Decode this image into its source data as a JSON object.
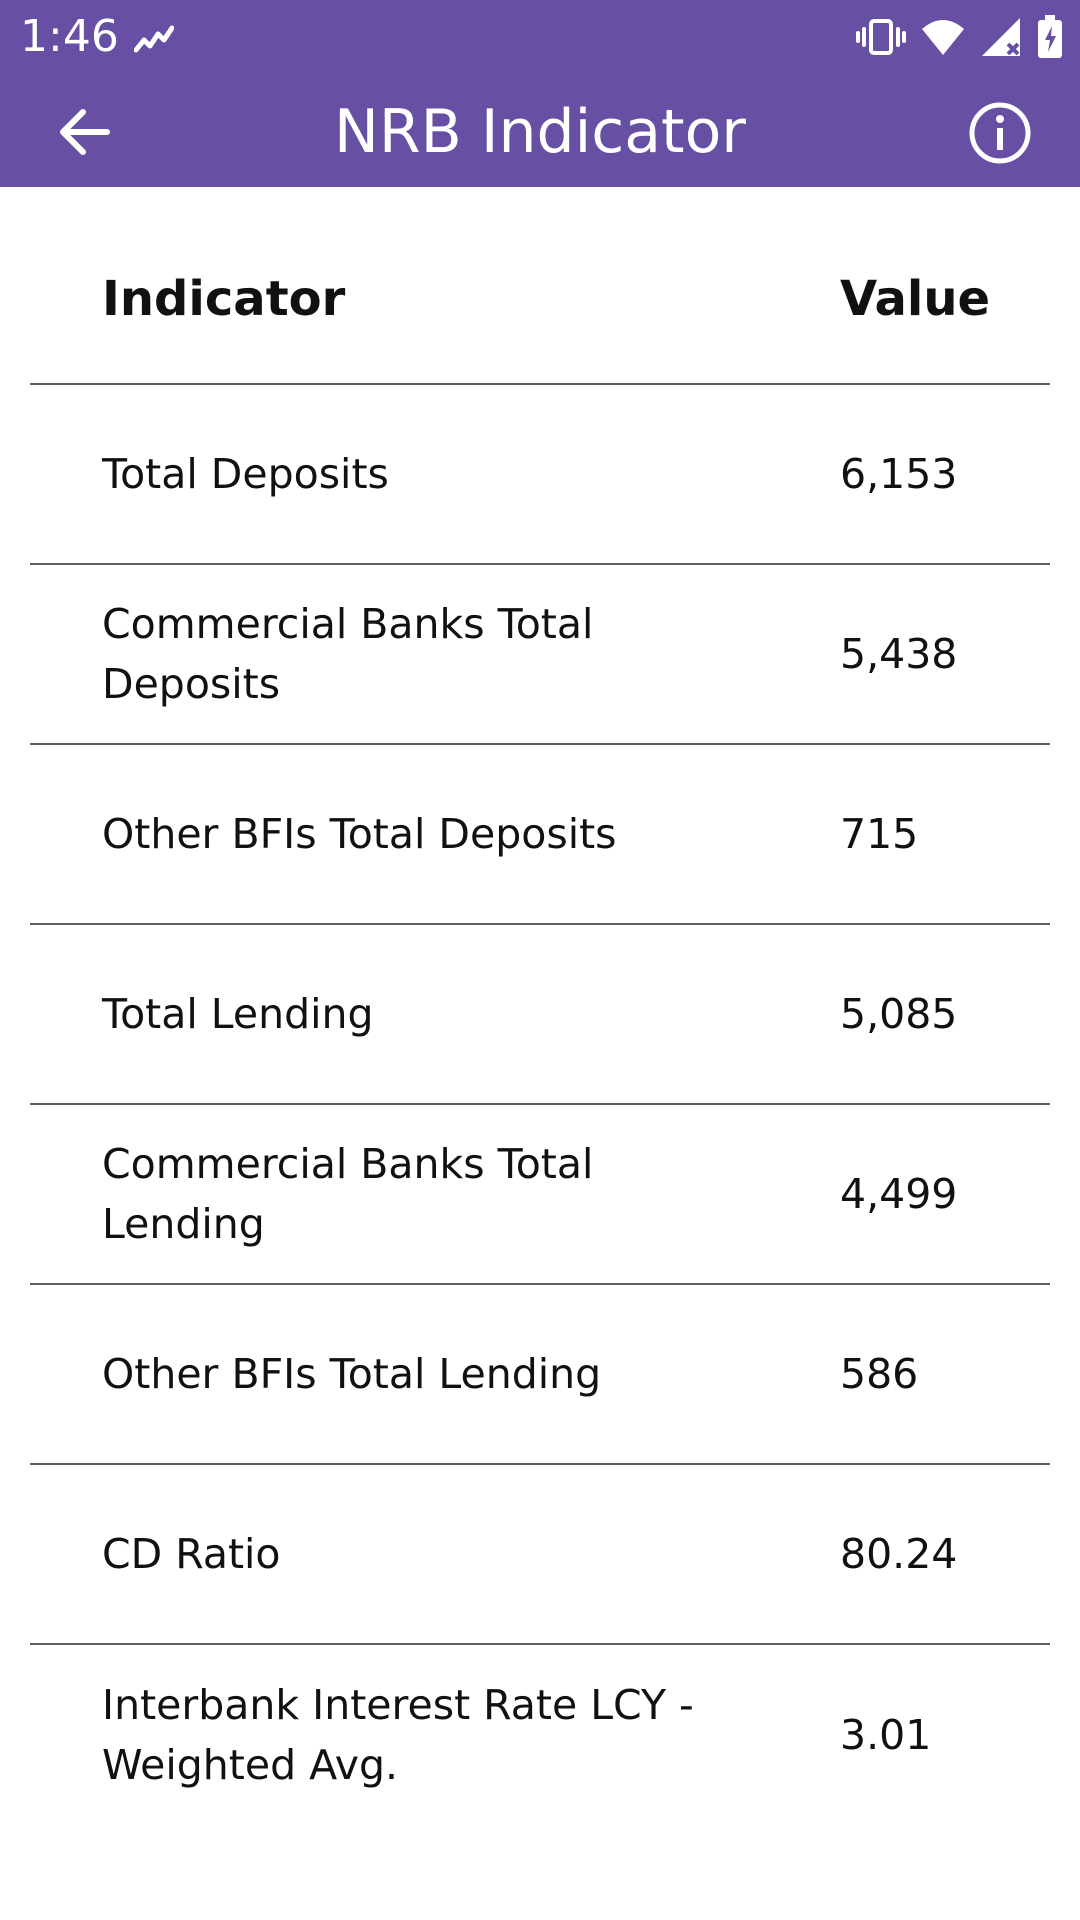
{
  "status_bar": {
    "time": "1:46"
  },
  "app_bar": {
    "title": "NRB Indicator",
    "color": "#6750A4"
  },
  "table": {
    "headers": [
      "Indicator",
      "Value"
    ],
    "rows": [
      {
        "name": "Total Deposits",
        "value": "6,153"
      },
      {
        "name": "Commercial Banks Total Deposits",
        "value": "5,438"
      },
      {
        "name": "Other BFIs Total Deposits",
        "value": "715"
      },
      {
        "name": "Total Lending",
        "value": "5,085"
      },
      {
        "name": "Commercial Banks Total Lending",
        "value": "4,499"
      },
      {
        "name": "Other BFIs Total Lending",
        "value": "586"
      },
      {
        "name": "CD Ratio",
        "value": "80.24"
      },
      {
        "name": "Interbank Interest Rate LCY - Weighted Avg.",
        "value": "3.01"
      }
    ]
  }
}
